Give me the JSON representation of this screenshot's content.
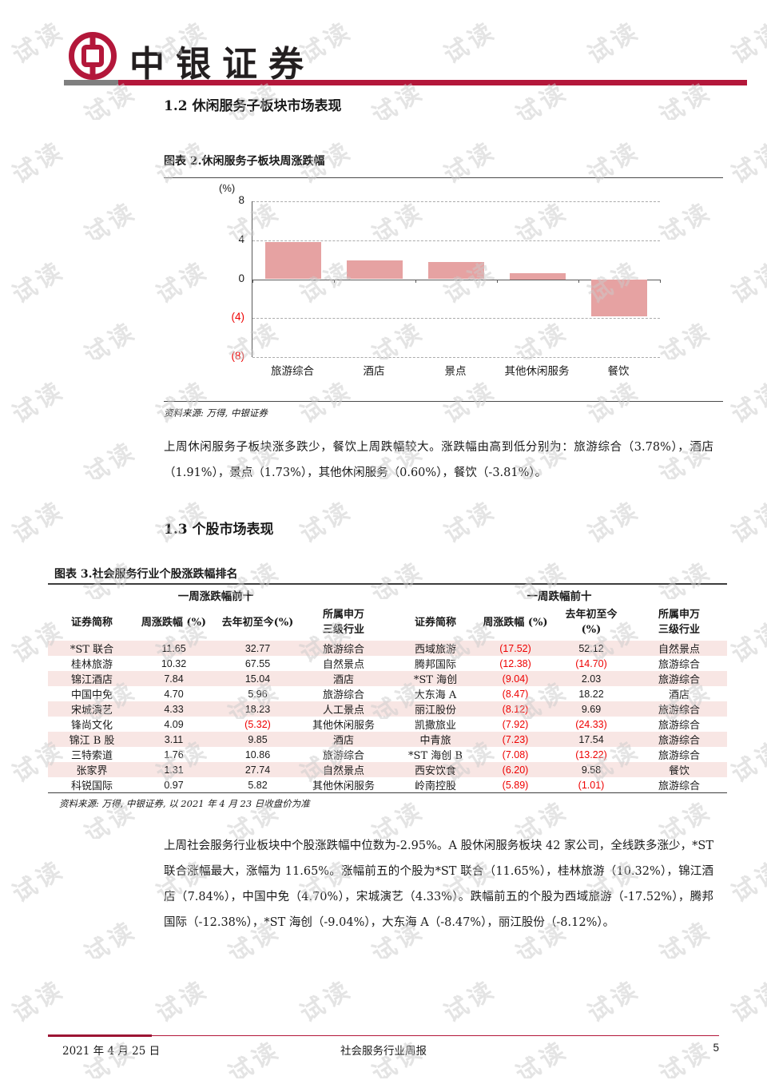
{
  "watermark": {
    "text": "试读"
  },
  "header": {
    "brand": "中银证券"
  },
  "colors": {
    "accent_red": "#b3173a",
    "bar_gray": "#7f7f7f",
    "chart_bar_pink": "#e6a2a2",
    "table_row_pink": "#f8e6e4",
    "negative_red": "#ee0000"
  },
  "sections": {
    "s12_title": "1.2 休闲服务子板块市场表现",
    "s13_title": "1.3 个股市场表现"
  },
  "figure2": {
    "title": "图表 2.休闲服务子板块周涨跌幅",
    "source": "资料来源: 万得, 中银证券"
  },
  "chart_data": {
    "type": "bar",
    "title": "图表 2.休闲服务子板块周涨跌幅",
    "categories": [
      "旅游综合",
      "酒店",
      "景点",
      "其他休闲服务",
      "餐饮"
    ],
    "values": [
      3.78,
      1.91,
      1.73,
      0.6,
      -3.81
    ],
    "xlabel": "",
    "ylabel": "(%)",
    "ylim": [
      -8,
      8
    ],
    "grid": "horizontal dashed",
    "legend": "none",
    "bar_color": "#e6a2a2",
    "yticks": [
      {
        "v": 8,
        "label": "8",
        "color": "#1a1a1a"
      },
      {
        "v": 4,
        "label": "4",
        "color": "#1a1a1a"
      },
      {
        "v": 0,
        "label": "0",
        "color": "#1a1a1a"
      },
      {
        "v": -4,
        "label": "(4)",
        "color": "#ee0000"
      },
      {
        "v": -8,
        "label": "(8)",
        "color": "#ee0000"
      }
    ]
  },
  "para1": "上周休闲服务子板块涨多跌少，餐饮上周跌幅较大。涨跌幅由高到低分别为：旅游综合（3.78%），酒店（1.91%），景点（1.73%），其他休闲服务（0.60%），餐饮（-3.81%）。",
  "figure3": {
    "title": "图表 3.社会服务行业个股涨跌幅排名",
    "source": "资料来源: 万得, 中银证券, 以 2021 年 4 月 23 日收盘价为准",
    "group_left": "一周涨跌幅前十",
    "group_right": "一周跌幅前十",
    "columns": [
      "证券简称",
      "周涨跌幅 (%)",
      "去年初至今(%)",
      "所属申万\n三级行业",
      "证券简称",
      "周涨跌幅 (%)",
      "去年初至今\n(%)",
      "所属申万\n三级行业"
    ],
    "rows": [
      {
        "left": [
          "*ST 联合",
          "11.65",
          "32.77",
          "旅游综合"
        ],
        "right": [
          "西域旅游",
          "(17.52)",
          "52.12",
          "自然景点"
        ]
      },
      {
        "left": [
          "桂林旅游",
          "10.32",
          "67.55",
          "自然景点"
        ],
        "right": [
          "腾邦国际",
          "(12.38)",
          "(14.70)",
          "旅游综合"
        ]
      },
      {
        "left": [
          "锦江酒店",
          "7.84",
          "15.04",
          "酒店"
        ],
        "right": [
          "*ST 海创",
          "(9.04)",
          "2.03",
          "旅游综合"
        ]
      },
      {
        "left": [
          "中国中免",
          "4.70",
          "5.96",
          "旅游综合"
        ],
        "right": [
          "大东海 A",
          "(8.47)",
          "18.22",
          "酒店"
        ]
      },
      {
        "left": [
          "宋城演艺",
          "4.33",
          "18.23",
          "人工景点"
        ],
        "right": [
          "丽江股份",
          "(8.12)",
          "9.69",
          "旅游综合"
        ]
      },
      {
        "left": [
          "锋尚文化",
          "4.09",
          "(5.32)",
          "其他休闲服务"
        ],
        "right": [
          "凯撒旅业",
          "(7.92)",
          "(24.33)",
          "旅游综合"
        ]
      },
      {
        "left": [
          "锦江 B 股",
          "3.11",
          "9.85",
          "酒店"
        ],
        "right": [
          "中青旅",
          "(7.23)",
          "17.54",
          "旅游综合"
        ]
      },
      {
        "left": [
          "三特索道",
          "1.76",
          "10.86",
          "旅游综合"
        ],
        "right": [
          "*ST 海创 B",
          "(7.08)",
          "(13.22)",
          "旅游综合"
        ]
      },
      {
        "left": [
          "张家界",
          "1.31",
          "27.74",
          "自然景点"
        ],
        "right": [
          "西安饮食",
          "(6.20)",
          "9.58",
          "餐饮"
        ]
      },
      {
        "left": [
          "科锐国际",
          "0.97",
          "5.82",
          "其他休闲服务"
        ],
        "right": [
          "岭南控股",
          "(5.89)",
          "(1.01)",
          "旅游综合"
        ]
      }
    ]
  },
  "para2": "上周社会服务行业板块中个股涨跌幅中位数为-2.95%。A 股休闲服务板块 42 家公司，全线跌多涨少，*ST 联合涨幅最大，涨幅为 11.65%。涨幅前五的个股为*ST 联合（11.65%），桂林旅游（10.32%），锦江酒店（7.84%），中国中免（4.70%），宋城演艺（4.33%）。跌幅前五的个股为西域旅游（-17.52%），腾邦国际（-12.38%），*ST 海创（-9.04%），大东海 A（-8.47%），丽江股份（-8.12%）。",
  "footer": {
    "date": "2021 年 4 月 25 日",
    "report_title": "社会服务行业周报",
    "page": "5"
  }
}
